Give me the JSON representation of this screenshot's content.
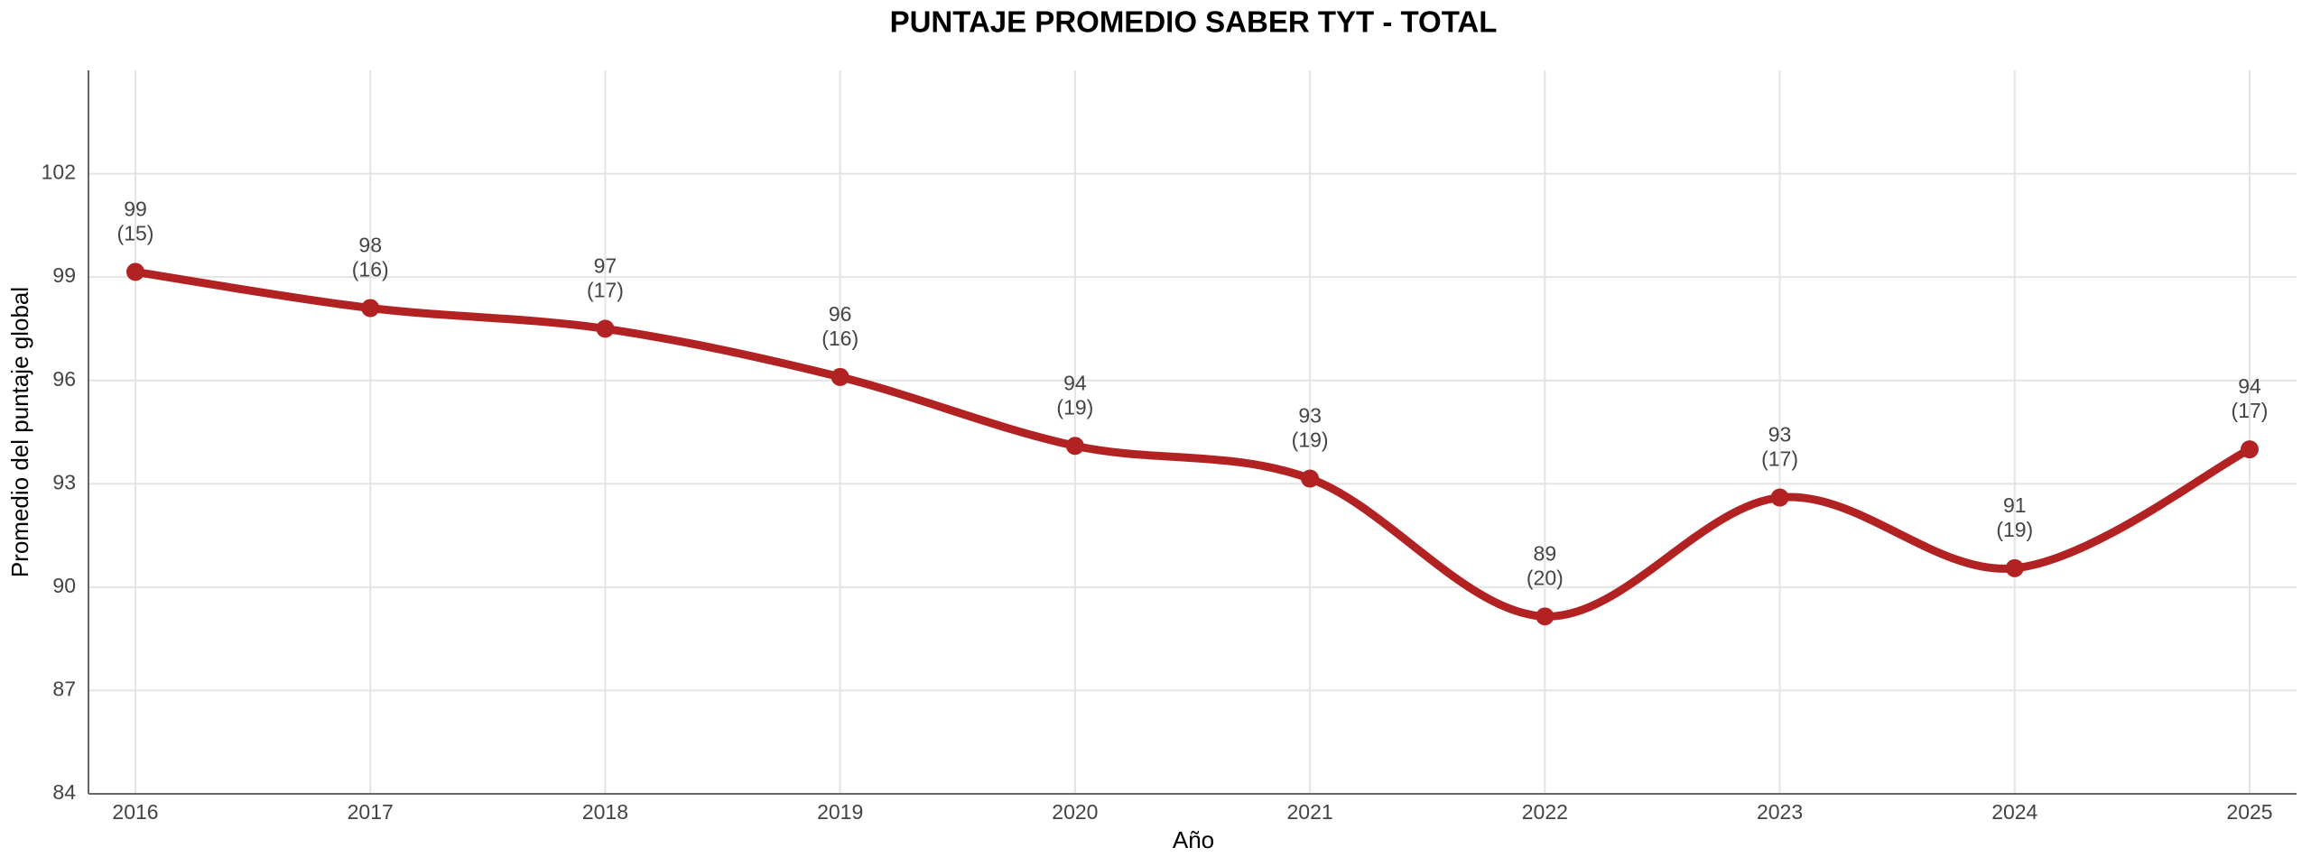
{
  "chart_data": {
    "type": "line",
    "title": "PUNTAJE PROMEDIO SABER TYT - TOTAL",
    "x_label": "Año",
    "y_label": "Promedio del puntaje global",
    "categories": [
      "2016",
      "2017",
      "2018",
      "2019",
      "2020",
      "2021",
      "2022",
      "2023",
      "2024",
      "2025"
    ],
    "values": [
      99.15,
      98.1,
      97.5,
      96.1,
      94.1,
      93.15,
      89.15,
      92.6,
      90.55,
      94.0
    ],
    "value_labels": [
      "99",
      "98",
      "97",
      "96",
      "94",
      "93",
      "89",
      "93",
      "91",
      "94"
    ],
    "secondary_labels": [
      "(15)",
      "(16)",
      "(17)",
      "(16)",
      "(19)",
      "(19)",
      "(20)",
      "(17)",
      "(19)",
      "(17)"
    ],
    "color": "#b22222",
    "ylim": [
      84,
      105
    ],
    "yticks": [
      84,
      87,
      90,
      93,
      96,
      99,
      102
    ],
    "grid": true,
    "smooth": true
  }
}
